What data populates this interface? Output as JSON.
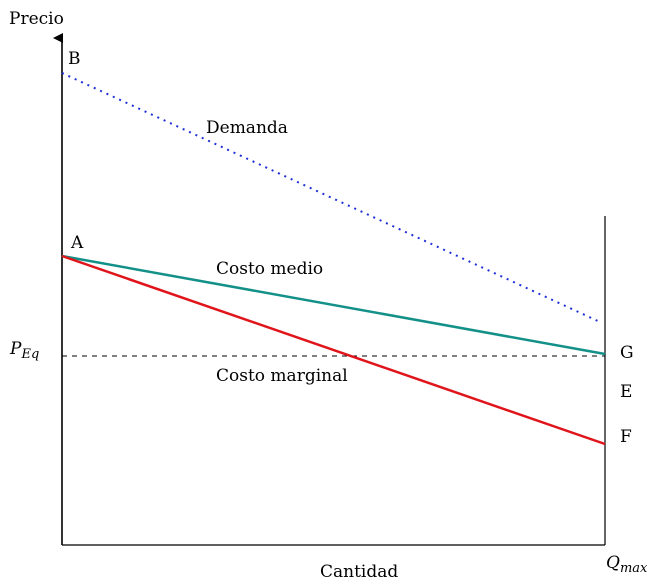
{
  "axes": {
    "y_label": "Precio",
    "x_label": "Cantidad"
  },
  "points": {
    "b": "B",
    "a": "A",
    "g": "G",
    "e": "E",
    "f": "F"
  },
  "curves": {
    "demand_label": "Demanda",
    "avg_cost_label": "Costo medio",
    "marginal_cost_label": "Costo marginal"
  },
  "equilibrium_price": {
    "main": "P",
    "sub": "Eq"
  },
  "max_quantity": {
    "main": "Q",
    "sub": "max"
  },
  "colors": {
    "demand": "#1f2fd6",
    "avg_cost": "#139088",
    "marginal_cost": "#e0151b",
    "axes": "#000000"
  }
}
